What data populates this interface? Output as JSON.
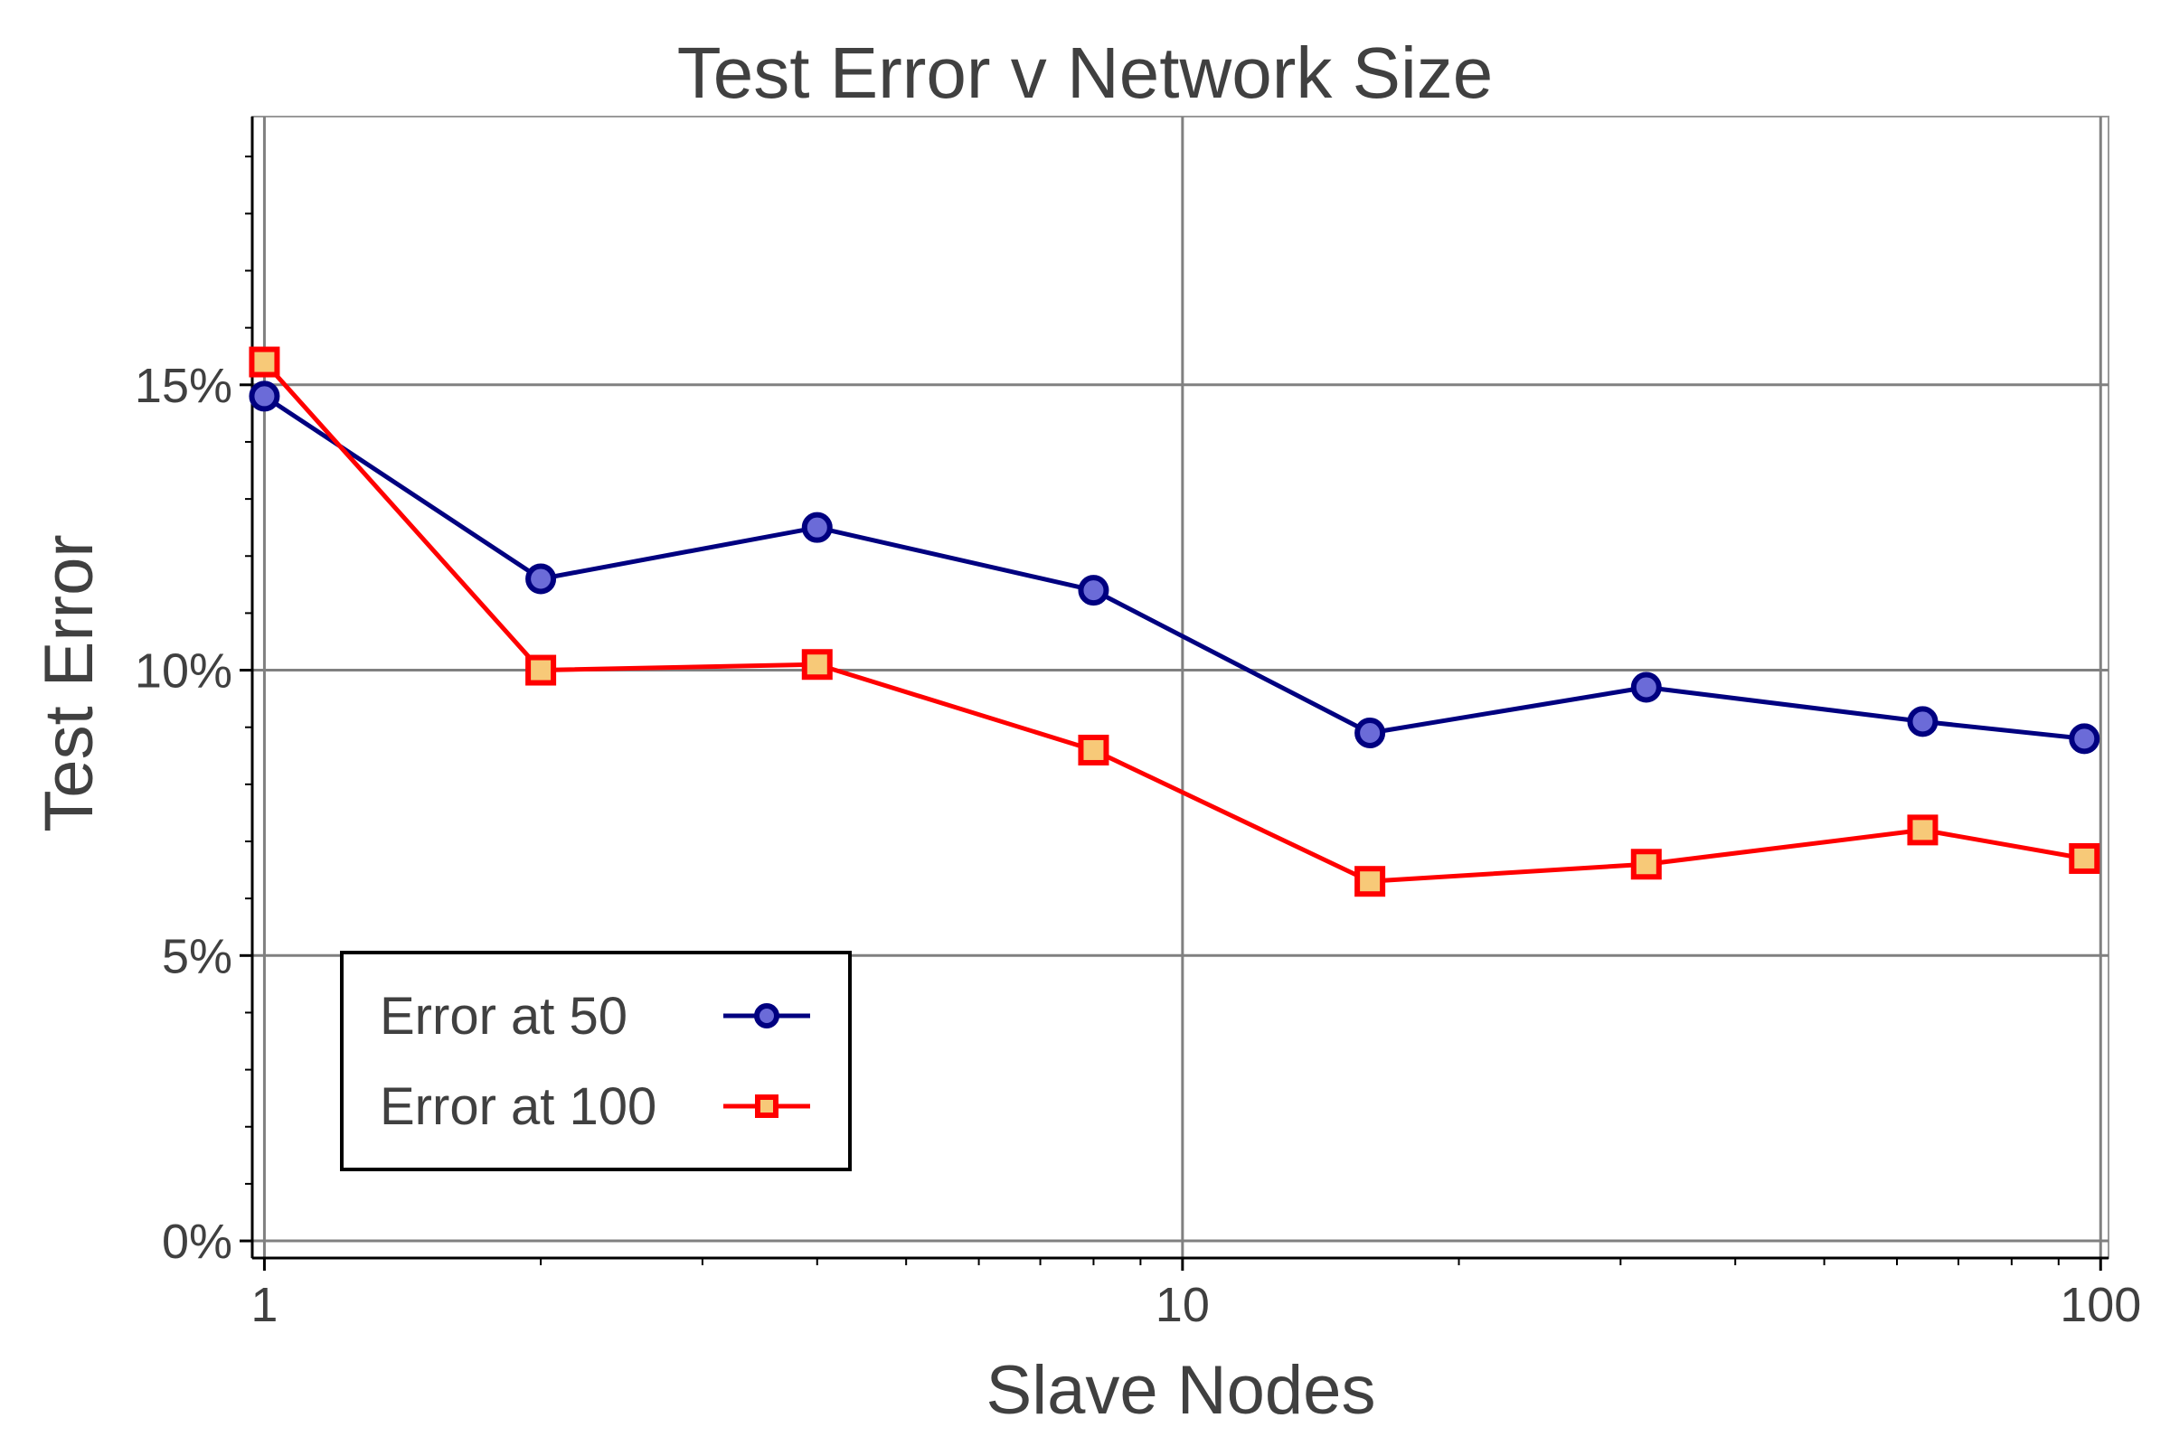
{
  "chart_data": {
    "type": "line",
    "title": "Test Error v Network Size",
    "xlabel": "Slave Nodes",
    "ylabel": "Test Error",
    "xscale": "log",
    "xlim": [
      0.97,
      102
    ],
    "ylim": [
      -0.003,
      0.197
    ],
    "xticks": [
      {
        "value": 1,
        "label": "1"
      },
      {
        "value": 10,
        "label": "10"
      },
      {
        "value": 100,
        "label": "100"
      }
    ],
    "yticks": [
      {
        "value": 0,
        "label": "0%"
      },
      {
        "value": 0.05,
        "label": "5%"
      },
      {
        "value": 0.1,
        "label": "10%"
      },
      {
        "value": 0.15,
        "label": "15%"
      }
    ],
    "grid": true,
    "legend_position": "bottom-left",
    "x": [
      1,
      2,
      4,
      8,
      16,
      32,
      64,
      96
    ],
    "series": [
      {
        "name": "Error at 50",
        "marker": "circle",
        "line_color": "#000080",
        "fill_color": "#6b6bd8",
        "values": [
          0.148,
          0.116,
          0.125,
          0.114,
          0.089,
          0.097,
          0.091,
          0.088
        ]
      },
      {
        "name": "Error at 100",
        "marker": "square",
        "line_color": "#ff0000",
        "fill_color": "#f7c978",
        "values": [
          0.154,
          0.1,
          0.101,
          0.086,
          0.063,
          0.066,
          0.072,
          0.067
        ]
      }
    ]
  }
}
